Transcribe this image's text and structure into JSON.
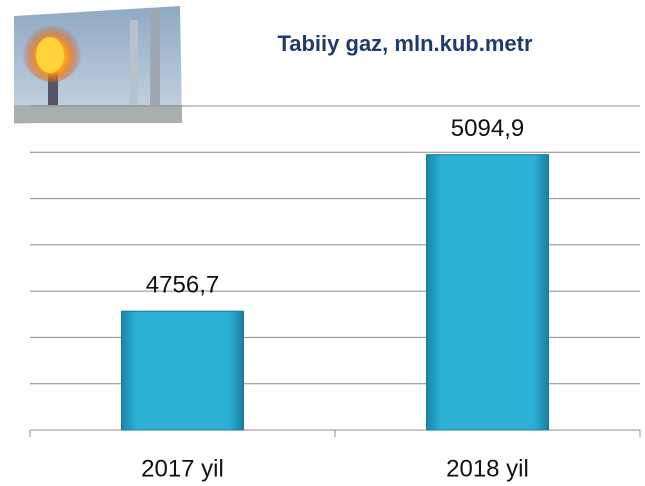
{
  "chart_data": {
    "type": "bar",
    "title": "Tabiiy gaz, mln.kub.metr",
    "categories": [
      "2017 yil",
      "2018 yil"
    ],
    "values": [
      4756.7,
      5094.9
    ],
    "value_labels": [
      "4756,7",
      "5094,9"
    ],
    "color": "#2aa9d0",
    "ylim": [
      4500,
      5200
    ],
    "yticks": [
      4500,
      4600,
      4700,
      4800,
      4900,
      5000,
      5100,
      5200
    ],
    "grid": true
  }
}
